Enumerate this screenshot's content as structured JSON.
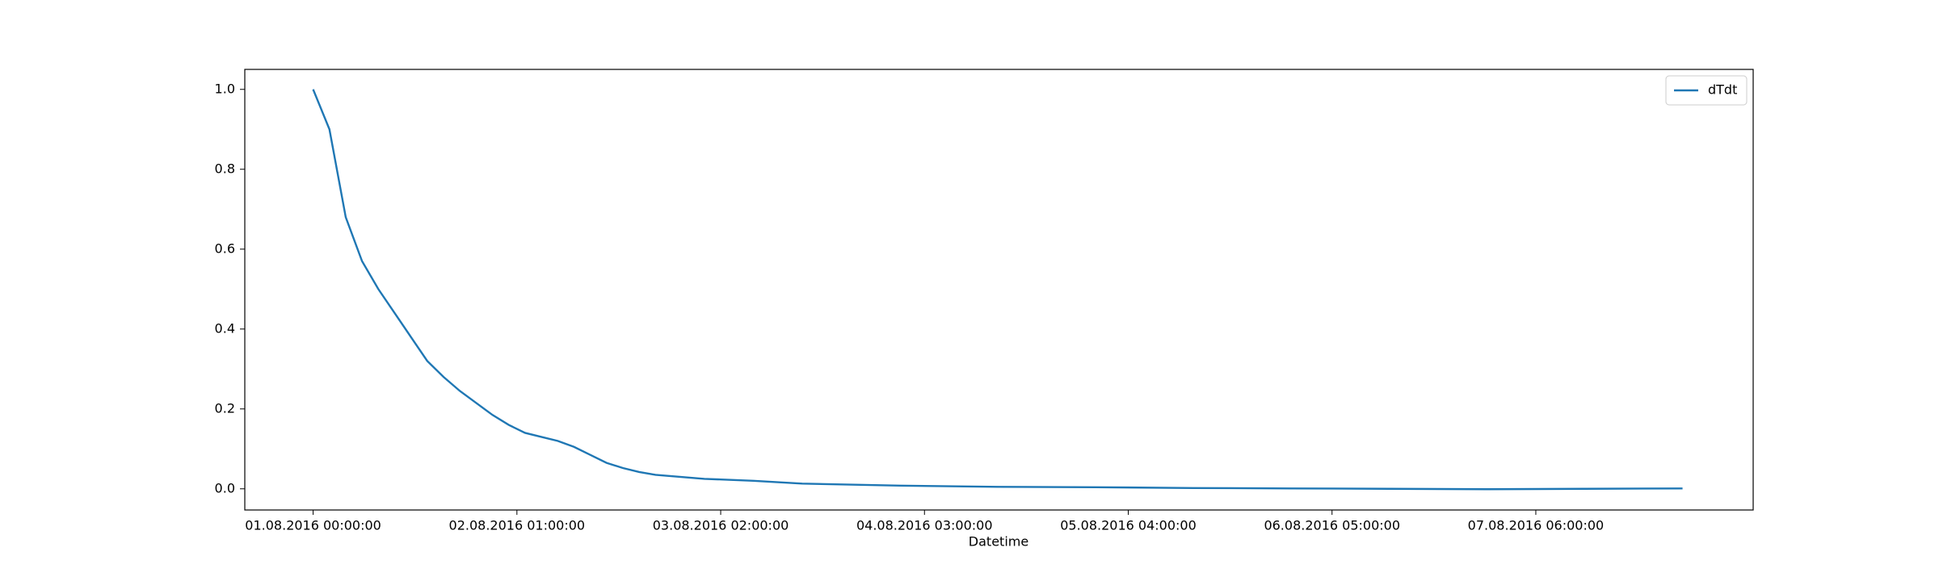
{
  "chart_data": {
    "type": "line",
    "x_label": "Datetime",
    "x": [
      "01.08.2016 00:00:00",
      "01.08.2016 02:00:00",
      "01.08.2016 04:00:00",
      "01.08.2016 06:00:00",
      "01.08.2016 08:00:00",
      "01.08.2016 10:00:00",
      "01.08.2016 12:00:00",
      "01.08.2016 14:00:00",
      "01.08.2016 16:00:00",
      "01.08.2016 18:00:00",
      "01.08.2016 20:00:00",
      "01.08.2016 22:00:00",
      "02.08.2016 00:00:00",
      "02.08.2016 02:00:00",
      "02.08.2016 04:00:00",
      "02.08.2016 06:00:00",
      "02.08.2016 08:00:00",
      "02.08.2016 10:00:00",
      "02.08.2016 12:00:00",
      "02.08.2016 14:00:00",
      "02.08.2016 16:00:00",
      "02.08.2016 18:00:00",
      "03.08.2016 00:00:00",
      "03.08.2016 06:00:00",
      "03.08.2016 12:00:00",
      "04.08.2016 00:00:00",
      "04.08.2016 12:00:00",
      "05.08.2016 00:00:00",
      "05.08.2016 12:00:00",
      "06.08.2016 00:00:00",
      "06.08.2016 12:00:00",
      "07.08.2016 00:00:00",
      "07.08.2016 12:00:00",
      "08.08.2016 00:00:00"
    ],
    "series": [
      {
        "name": "dTdt",
        "color": "#1f77b4",
        "values": [
          1.0,
          0.9,
          0.68,
          0.57,
          0.5,
          0.44,
          0.38,
          0.32,
          0.28,
          0.245,
          0.215,
          0.185,
          0.16,
          0.14,
          0.13,
          0.12,
          0.105,
          0.085,
          0.065,
          0.052,
          0.042,
          0.035,
          0.025,
          0.02,
          0.013,
          0.008,
          0.005,
          0.004,
          0.002,
          0.001,
          0.0,
          -0.001,
          0.0,
          0.001
        ]
      }
    ],
    "xlim": [
      "31.07.2016 15:37:00",
      "08.08.2016 08:40:00"
    ],
    "xticks": [
      "01.08.2016 00:00:00",
      "02.08.2016 01:00:00",
      "03.08.2016 02:00:00",
      "04.08.2016 03:00:00",
      "05.08.2016 04:00:00",
      "06.08.2016 05:00:00",
      "07.08.2016 06:00:00"
    ],
    "ylim": [
      -0.053,
      1.05
    ],
    "yticks": [
      {
        "value": 0,
        "label": "0.0"
      },
      0.2,
      0.4,
      0.6,
      0.8,
      {
        "value": 1,
        "label": "1.0"
      }
    ],
    "grid": false,
    "legend": "upper right"
  }
}
